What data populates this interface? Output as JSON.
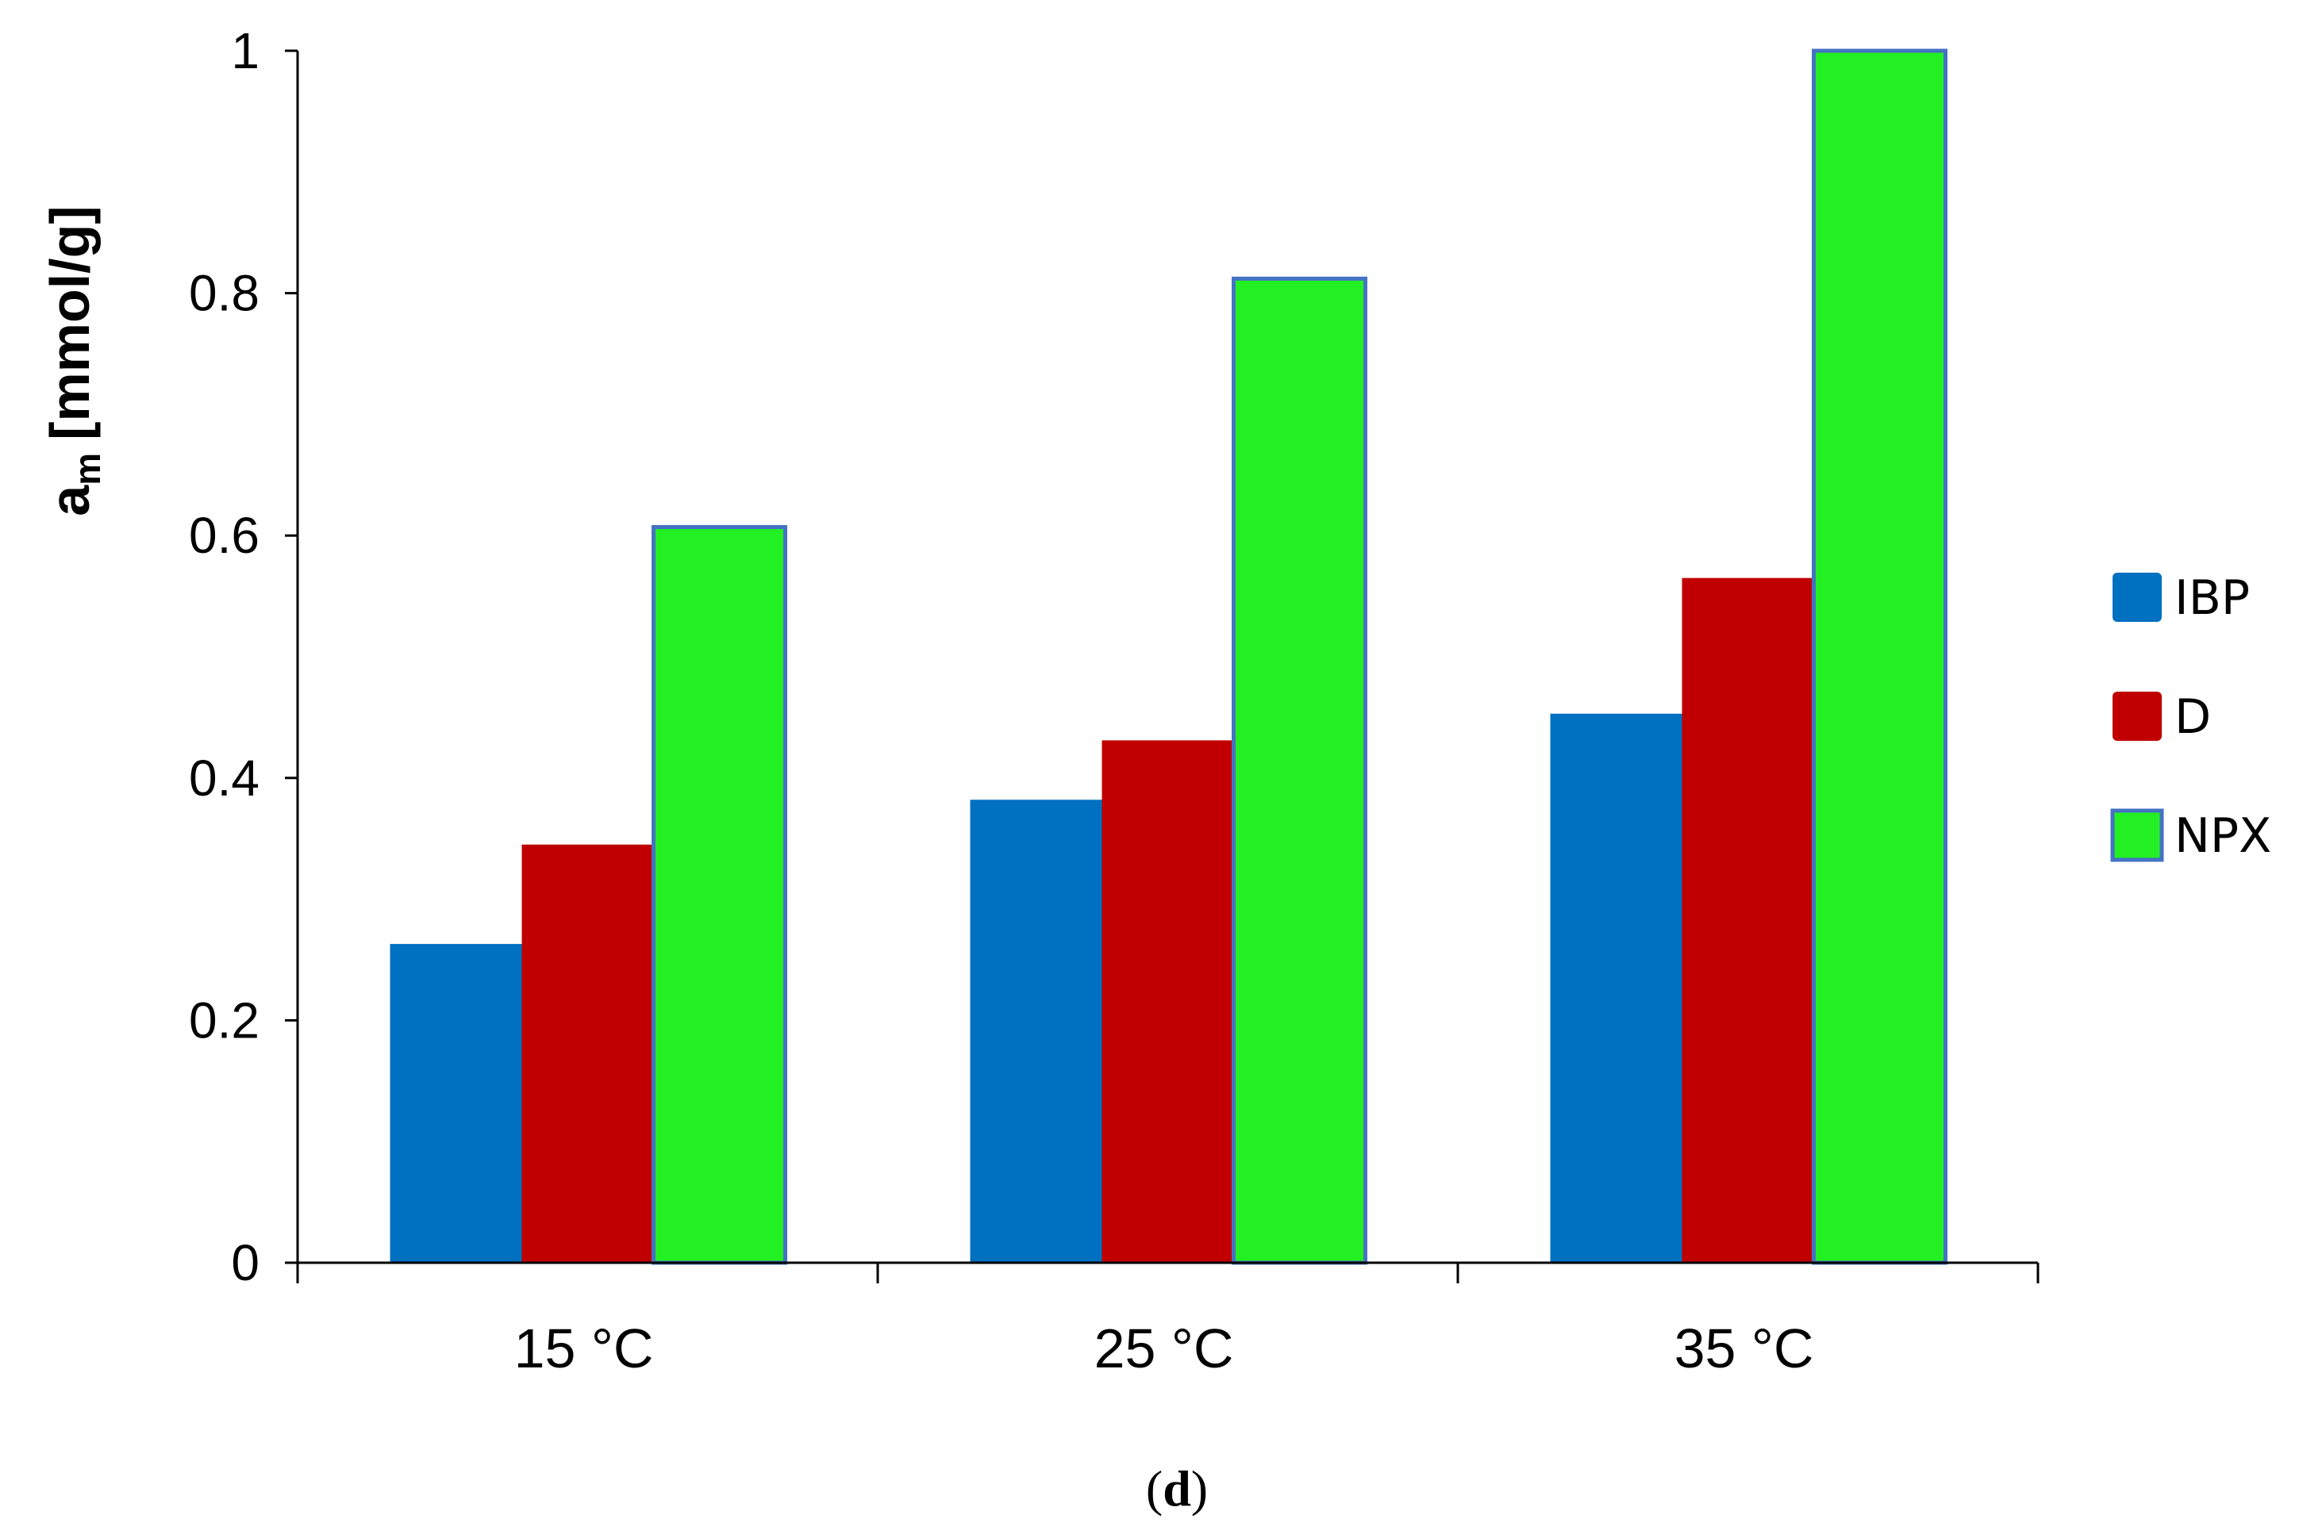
{
  "chart_data": {
    "type": "bar",
    "title": "",
    "xlabel": "",
    "ylabel": "a",
    "ylabel_sub": "m",
    "ylabel_unit": "[mmol/g]",
    "ylim": [
      0,
      1
    ],
    "yticks": [
      0,
      0.2,
      0.4,
      0.6,
      0.8,
      1
    ],
    "ytick_labels": [
      "0",
      "0.2",
      "0.4",
      "0.6",
      "0.8",
      "1"
    ],
    "categories": [
      "15 °C",
      "25 °C",
      "35 °C"
    ],
    "series": [
      {
        "name": "IBP",
        "color": "#0070C0",
        "values": [
          0.263,
          0.382,
          0.453
        ]
      },
      {
        "name": "D",
        "color": "#C00000",
        "values": [
          0.345,
          0.431,
          0.565
        ]
      },
      {
        "name": "NPX",
        "color": "#22F022",
        "values": [
          0.607,
          0.812,
          1.0
        ]
      }
    ],
    "legend_position": "right",
    "grid": false
  },
  "caption": {
    "open": "(",
    "letter": "d",
    "close": ")"
  }
}
